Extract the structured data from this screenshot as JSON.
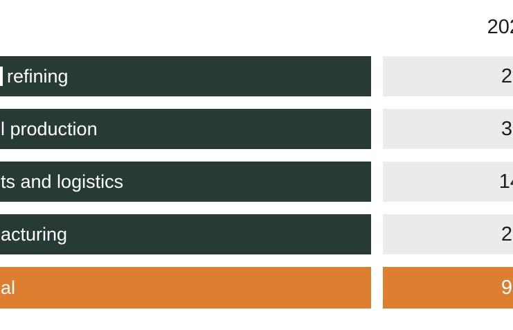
{
  "header": {
    "year": "202"
  },
  "colors": {
    "dark_teal": "#283a35",
    "orange": "#dd7e30",
    "cell_gray": "#e9ece9",
    "text_dark": "#1c1c1c",
    "text_light": "#ffffff"
  },
  "table": {
    "rows": [
      {
        "label": "refining",
        "value": "2"
      },
      {
        "label": "l production",
        "value": "3"
      },
      {
        "label": "ts and logistics",
        "value": "14"
      },
      {
        "label": "acturing",
        "value": "2"
      },
      {
        "label": "al",
        "value": "9"
      }
    ]
  }
}
